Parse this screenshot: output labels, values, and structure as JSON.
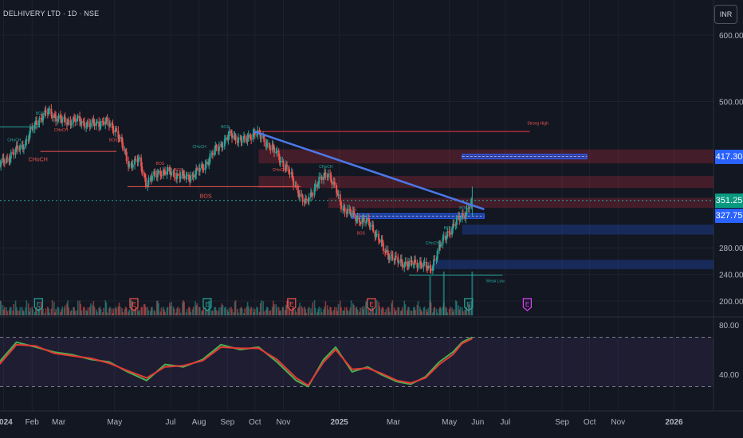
{
  "header": {
    "symbol": "DELHIVERY LTD · 1D · NSE",
    "currency": "INR"
  },
  "price_tags": [
    {
      "label": "417.30",
      "color": "#2962ff"
    },
    {
      "label": "351.25",
      "color": "#089981"
    },
    {
      "label": "327.75",
      "color": "#2962ff"
    }
  ],
  "colors": {
    "background": "#131722",
    "up": "#26a69a",
    "down": "#ef5350",
    "trendline": "#4c78e8",
    "supply_zone": "#f23645",
    "demand_zone": "#2962ff",
    "rsi_fast": "#4caf50",
    "rsi_slow": "#e53935",
    "earnings_past": "#26a69a",
    "earnings_down": "#ef5350",
    "earnings_future": "#e040fb"
  },
  "icons": {
    "earnings": "earnings-flag-icon"
  },
  "annotations": {
    "strong_high": "Strong High",
    "weak_low": "Weak Low",
    "bos": "BOS",
    "choch": "CHoCH"
  },
  "chart_data": [
    {
      "type": "candlestick",
      "title": "DELHIVERY LTD · 1D · NSE",
      "ylim": [
        180,
        620
      ],
      "y_ticks": [
        600,
        500,
        280,
        240,
        200
      ],
      "y_tick_labels": [
        "600.00",
        "500.00",
        "280.00",
        "240.00",
        "200.00"
      ],
      "x_ticks": [
        "2024-01-01",
        "2024-02-01",
        "2024-03-01",
        "2024-05-01",
        "2024-07-01",
        "2024-08-01",
        "2024-09-01",
        "2024-10-01",
        "2024-11-01",
        "2025-01-01",
        "2025-03-01",
        "2025-05-01",
        "2025-06-01",
        "2025-07-01",
        "2025-09-01",
        "2025-10-01",
        "2025-11-01",
        "2026-01-01"
      ],
      "x_tick_labels": [
        "2024",
        "Feb",
        "Mar",
        "May",
        "Jul",
        "Aug",
        "Sep",
        "Oct",
        "Nov",
        "2025",
        "Mar",
        "May",
        "Jun",
        "Jul",
        "Sep",
        "Oct",
        "Nov",
        "2026"
      ],
      "close_path": [
        [
          "2023-12-10",
          392
        ],
        [
          "2023-12-28",
          405
        ],
        [
          "2024-01-10",
          420
        ],
        [
          "2024-01-25",
          438
        ],
        [
          "2024-02-06",
          470
        ],
        [
          "2024-02-20",
          485
        ],
        [
          "2024-03-05",
          470
        ],
        [
          "2024-03-20",
          472
        ],
        [
          "2024-04-05",
          465
        ],
        [
          "2024-04-20",
          470
        ],
        [
          "2024-05-03",
          458
        ],
        [
          "2024-05-17",
          405
        ],
        [
          "2024-05-28",
          412
        ],
        [
          "2024-06-05",
          378
        ],
        [
          "2024-06-20",
          395
        ],
        [
          "2024-07-03",
          392
        ],
        [
          "2024-07-20",
          385
        ],
        [
          "2024-08-05",
          400
        ],
        [
          "2024-08-20",
          428
        ],
        [
          "2024-09-05",
          450
        ],
        [
          "2024-09-20",
          440
        ],
        [
          "2024-10-01",
          455
        ],
        [
          "2024-10-20",
          430
        ],
        [
          "2024-11-05",
          400
        ],
        [
          "2024-11-25",
          345
        ],
        [
          "2024-12-05",
          370
        ],
        [
          "2024-12-20",
          395
        ],
        [
          "2025-01-05",
          340
        ],
        [
          "2025-01-20",
          325
        ],
        [
          "2025-02-05",
          315
        ],
        [
          "2025-02-20",
          275
        ],
        [
          "2025-03-05",
          260
        ],
        [
          "2025-03-20",
          255
        ],
        [
          "2025-04-01",
          258
        ],
        [
          "2025-04-10",
          245
        ],
        [
          "2025-04-20",
          280
        ],
        [
          "2025-05-01",
          305
        ],
        [
          "2025-05-10",
          320
        ],
        [
          "2025-05-20",
          335
        ],
        [
          "2025-05-26",
          351.25
        ]
      ],
      "volume_spikes": [
        [
          "2025-04-10",
          0.9
        ],
        [
          "2025-04-25",
          1.0
        ],
        [
          "2025-05-26",
          1.0
        ]
      ],
      "earnings_dates": [
        [
          "2024-02-08",
          "past"
        ],
        [
          "2024-05-22",
          "down"
        ],
        [
          "2024-08-10",
          "past"
        ],
        [
          "2024-11-10",
          "down"
        ],
        [
          "2025-02-05",
          "down"
        ],
        [
          "2025-05-22",
          "past"
        ],
        [
          "2025-07-25",
          "future"
        ]
      ],
      "trendline": [
        [
          "2024-09-30",
          455
        ],
        [
          "2025-06-08",
          338
        ]
      ],
      "levels": [
        {
          "label": "Strong High",
          "from": "2024-10-01",
          "to": "2025-07-28",
          "y": 455,
          "color": "#f23645"
        },
        {
          "label": "Weak Low",
          "from": "2025-03-18",
          "to": "2025-06-28",
          "y": 239,
          "color": "#26a69a"
        }
      ],
      "supply_zones": [
        [
          "2024-10-05",
          "2026-02-10",
          407,
          428
        ],
        [
          "2024-10-05",
          "2026-02-10",
          370,
          388
        ],
        [
          "2024-12-20",
          "2026-02-10",
          340,
          355
        ]
      ],
      "demand_zones": [
        [
          "2025-05-15",
          "2026-02-10",
          300,
          315
        ],
        [
          "2025-04-15",
          "2026-02-10",
          248,
          262
        ]
      ],
      "blue_lines": [
        [
          "2025-05-15",
          "2025-09-28",
          417.3
        ],
        [
          "2025-01-15",
          "2025-06-08",
          327.75
        ]
      ]
    },
    {
      "type": "line",
      "title": "",
      "ylim": [
        25,
        88
      ],
      "y_tick_labels": [
        "80.00",
        "40.00"
      ],
      "y_ticks": [
        80,
        40
      ],
      "bands": [
        70,
        30
      ],
      "series": [
        {
          "color": "#4caf50",
          "values": [
            [
              "2023-12-10",
              38
            ],
            [
              "2023-12-25",
              48
            ],
            [
              "2024-01-15",
              66
            ],
            [
              "2024-02-05",
              62
            ],
            [
              "2024-02-25",
              58
            ],
            [
              "2024-03-15",
              56
            ],
            [
              "2024-04-05",
              52
            ],
            [
              "2024-04-25",
              50
            ],
            [
              "2024-05-15",
              42
            ],
            [
              "2024-06-05",
              35
            ],
            [
              "2024-06-25",
              48
            ],
            [
              "2024-07-15",
              46
            ],
            [
              "2024-08-05",
              52
            ],
            [
              "2024-08-25",
              64
            ],
            [
              "2024-09-15",
              60
            ],
            [
              "2024-10-05",
              62
            ],
            [
              "2024-10-25",
              50
            ],
            [
              "2024-11-15",
              35
            ],
            [
              "2024-11-28",
              30
            ],
            [
              "2024-12-15",
              52
            ],
            [
              "2024-12-28",
              62
            ],
            [
              "2025-01-15",
              42
            ],
            [
              "2025-02-01",
              46
            ],
            [
              "2025-02-15",
              40
            ],
            [
              "2025-03-05",
              34
            ],
            [
              "2025-03-20",
              32
            ],
            [
              "2025-04-05",
              38
            ],
            [
              "2025-04-20",
              50
            ],
            [
              "2025-05-05",
              58
            ],
            [
              "2025-05-15",
              66
            ],
            [
              "2025-05-26",
              70
            ]
          ]
        },
        {
          "color": "#e53935",
          "values": [
            [
              "2023-12-10",
              36
            ],
            [
              "2023-12-25",
              46
            ],
            [
              "2024-01-15",
              64
            ],
            [
              "2024-02-05",
              63
            ],
            [
              "2024-02-25",
              57
            ],
            [
              "2024-03-15",
              55
            ],
            [
              "2024-04-05",
              53
            ],
            [
              "2024-04-25",
              49
            ],
            [
              "2024-05-15",
              43
            ],
            [
              "2024-06-05",
              37
            ],
            [
              "2024-06-25",
              46
            ],
            [
              "2024-07-15",
              47
            ],
            [
              "2024-08-05",
              51
            ],
            [
              "2024-08-25",
              62
            ],
            [
              "2024-09-15",
              61
            ],
            [
              "2024-10-05",
              61
            ],
            [
              "2024-10-25",
              52
            ],
            [
              "2024-11-15",
              37
            ],
            [
              "2024-11-28",
              31
            ],
            [
              "2024-12-15",
              50
            ],
            [
              "2024-12-28",
              60
            ],
            [
              "2025-01-15",
              44
            ],
            [
              "2025-02-01",
              45
            ],
            [
              "2025-02-15",
              41
            ],
            [
              "2025-03-05",
              35
            ],
            [
              "2025-03-20",
              33
            ],
            [
              "2025-04-05",
              37
            ],
            [
              "2025-04-20",
              48
            ],
            [
              "2025-05-05",
              56
            ],
            [
              "2025-05-15",
              65
            ],
            [
              "2025-05-26",
              69
            ]
          ]
        }
      ]
    }
  ]
}
